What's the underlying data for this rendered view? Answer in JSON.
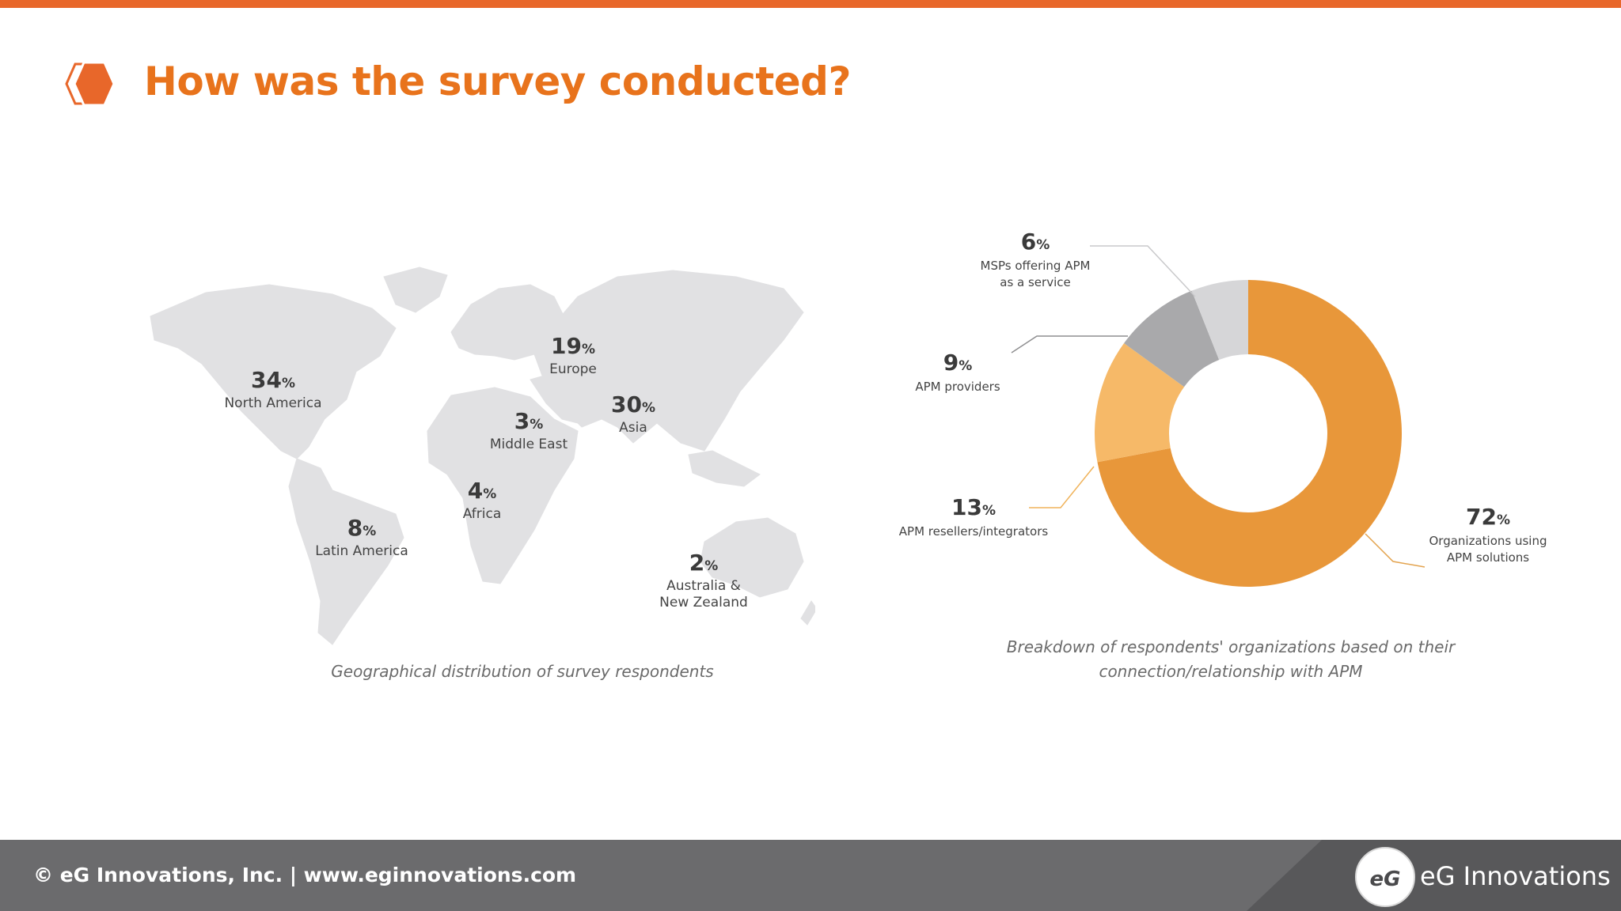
{
  "slide": {
    "title": "How was the survey conducted?"
  },
  "map": {
    "caption": "Geographical distribution of survey respondents",
    "regions": [
      {
        "name": "North America",
        "value": "34",
        "unit": "%"
      },
      {
        "name": "Europe",
        "value": "19",
        "unit": "%"
      },
      {
        "name": "Asia",
        "value": "30",
        "unit": "%"
      },
      {
        "name": "Middle East",
        "value": "3",
        "unit": "%"
      },
      {
        "name": "Africa",
        "value": "4",
        "unit": "%"
      },
      {
        "name": "Latin America",
        "value": "8",
        "unit": "%"
      },
      {
        "name": "Australia & New Zealand",
        "name_line1": "Australia &",
        "name_line2": "New Zealand",
        "value": "2",
        "unit": "%"
      }
    ],
    "land_color": "#E1E1E3"
  },
  "chart_data": [
    {
      "type": "table",
      "title": "",
      "caption": "Geographical distribution of survey respondents",
      "categories": [
        "North America",
        "Europe",
        "Asia",
        "Middle East",
        "Africa",
        "Latin America",
        "Australia & New Zealand"
      ],
      "values": [
        34,
        19,
        30,
        3,
        4,
        8,
        2
      ],
      "unit": "%"
    },
    {
      "type": "pie",
      "title": "",
      "caption_line1": "Breakdown of respondents' organizations based on their",
      "caption_line2": "connection/relationship with APM",
      "unit": "%",
      "slices": [
        {
          "label": "Organizations using APM solutions",
          "label_line1": "Organizations using",
          "label_line2": "APM solutions",
          "value": 72,
          "color": "#E8973A"
        },
        {
          "label": "APM resellers/integrators",
          "label_line1": "APM resellers/integrators",
          "value": 13,
          "color": "#F6B968"
        },
        {
          "label": "APM providers",
          "label_line1": "APM providers",
          "value": 9,
          "color": "#A9A9AB"
        },
        {
          "label": "MSPs offering APM as a service",
          "label_line1": "MSPs offering APM",
          "label_line2": "as a service",
          "value": 6,
          "color": "#D6D6D8"
        }
      ]
    }
  ],
  "footer": {
    "text": "© eG Innovations, Inc.  |  www.eginnovations.com",
    "logo_text": "eG Innovations",
    "logo_mark": "eG"
  },
  "colors": {
    "accent": "#E8672A",
    "title": "#E8731C",
    "footer_bg": "#6b6b6d"
  }
}
